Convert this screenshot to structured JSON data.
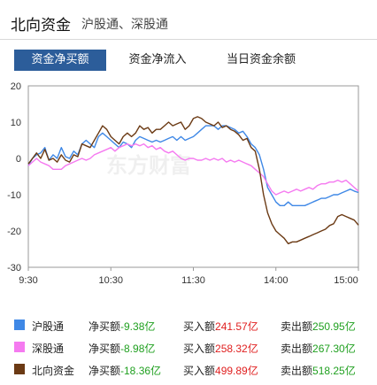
{
  "header": {
    "title": "北向资金",
    "subtitle": "沪股通、深股通"
  },
  "tabs": [
    {
      "label": "资金净买额",
      "active": true
    },
    {
      "label": "资金净流入",
      "active": false
    },
    {
      "label": "当日资金余额",
      "active": false
    }
  ],
  "watermark": "东方财富",
  "chart_data": {
    "type": "line",
    "x_axis": {
      "ticks": [
        "9:30",
        "10:30",
        "11:30",
        "14:00",
        "15:00"
      ]
    },
    "y_axis": {
      "min": -30,
      "max": 20,
      "ticks": [
        20,
        10,
        0,
        -10,
        -20,
        -30
      ]
    },
    "grid": false,
    "series": [
      {
        "name": "沪股通",
        "color": "#3f88e6",
        "points": [
          [
            0,
            -2
          ],
          [
            3,
            0
          ],
          [
            6,
            1
          ],
          [
            9,
            1.5
          ],
          [
            12,
            3
          ],
          [
            15,
            -0.5
          ],
          [
            18,
            1
          ],
          [
            21,
            0
          ],
          [
            24,
            3
          ],
          [
            27,
            0.5
          ],
          [
            30,
            0
          ],
          [
            33,
            2
          ],
          [
            36,
            1
          ],
          [
            39,
            4
          ],
          [
            42,
            5
          ],
          [
            45,
            4
          ],
          [
            48,
            3
          ],
          [
            51,
            6
          ],
          [
            54,
            7
          ],
          [
            57,
            6
          ],
          [
            60,
            5
          ],
          [
            63,
            4
          ],
          [
            66,
            3
          ],
          [
            69,
            4.5
          ],
          [
            72,
            4
          ],
          [
            75,
            3
          ],
          [
            78,
            5
          ],
          [
            81,
            6
          ],
          [
            84,
            5.5
          ],
          [
            87,
            5
          ],
          [
            90,
            4.5
          ],
          [
            93,
            5
          ],
          [
            96,
            4.5
          ],
          [
            99,
            5
          ],
          [
            102,
            5.5
          ],
          [
            105,
            6
          ],
          [
            108,
            5
          ],
          [
            111,
            6
          ],
          [
            114,
            5
          ],
          [
            117,
            5.5
          ],
          [
            120,
            6
          ],
          [
            123,
            7
          ],
          [
            126,
            8
          ],
          [
            129,
            9
          ],
          [
            132,
            9
          ],
          [
            135,
            9
          ],
          [
            138,
            8
          ],
          [
            141,
            9
          ],
          [
            144,
            9
          ],
          [
            147,
            8.5
          ],
          [
            150,
            8
          ],
          [
            153,
            7
          ],
          [
            156,
            7.5
          ],
          [
            159,
            6
          ],
          [
            162,
            4
          ],
          [
            165,
            3
          ],
          [
            168,
            1
          ],
          [
            171,
            -3
          ],
          [
            174,
            -8
          ],
          [
            177,
            -10
          ],
          [
            180,
            -12
          ],
          [
            183,
            -13
          ],
          [
            186,
            -13
          ],
          [
            189,
            -12
          ],
          [
            192,
            -13
          ],
          [
            195,
            -13
          ],
          [
            198,
            -13
          ],
          [
            201,
            -13
          ],
          [
            204,
            -12.5
          ],
          [
            207,
            -12
          ],
          [
            210,
            -11.5
          ],
          [
            213,
            -11
          ],
          [
            216,
            -11
          ],
          [
            219,
            -10.5
          ],
          [
            222,
            -10
          ],
          [
            225,
            -10
          ],
          [
            228,
            -9.5
          ],
          [
            231,
            -9
          ],
          [
            234,
            -8.5
          ],
          [
            237,
            -9
          ],
          [
            240,
            -9.38
          ]
        ]
      },
      {
        "name": "深股通",
        "color": "#f57af0",
        "points": [
          [
            0,
            -2
          ],
          [
            3,
            -1
          ],
          [
            6,
            0
          ],
          [
            9,
            -1
          ],
          [
            12,
            -1.5
          ],
          [
            15,
            -2
          ],
          [
            18,
            -3
          ],
          [
            21,
            -3
          ],
          [
            24,
            -3
          ],
          [
            27,
            -2
          ],
          [
            30,
            -1.5
          ],
          [
            33,
            -1
          ],
          [
            36,
            -0.5
          ],
          [
            39,
            0
          ],
          [
            42,
            -0.5
          ],
          [
            45,
            0
          ],
          [
            48,
            1
          ],
          [
            51,
            1.5
          ],
          [
            54,
            2
          ],
          [
            57,
            2.5
          ],
          [
            60,
            3
          ],
          [
            63,
            2
          ],
          [
            66,
            3
          ],
          [
            69,
            3.5
          ],
          [
            72,
            4
          ],
          [
            75,
            3.5
          ],
          [
            78,
            4
          ],
          [
            81,
            3.5
          ],
          [
            84,
            4
          ],
          [
            87,
            3
          ],
          [
            90,
            3.5
          ],
          [
            93,
            2.5
          ],
          [
            96,
            3
          ],
          [
            99,
            2
          ],
          [
            102,
            1.5
          ],
          [
            105,
            2
          ],
          [
            108,
            1
          ],
          [
            111,
            0
          ],
          [
            114,
            -0.5
          ],
          [
            117,
            0
          ],
          [
            120,
            0
          ],
          [
            123,
            -0.5
          ],
          [
            126,
            -0.5
          ],
          [
            129,
            0
          ],
          [
            132,
            -0.5
          ],
          [
            135,
            0
          ],
          [
            138,
            -0.5
          ],
          [
            141,
            0
          ],
          [
            144,
            -1
          ],
          [
            147,
            -0.5
          ],
          [
            150,
            -1
          ],
          [
            153,
            -0.5
          ],
          [
            156,
            -1
          ],
          [
            159,
            -1.5
          ],
          [
            162,
            -2
          ],
          [
            165,
            -3
          ],
          [
            168,
            -4
          ],
          [
            171,
            -5
          ],
          [
            174,
            -7
          ],
          [
            177,
            -9
          ],
          [
            180,
            -10
          ],
          [
            183,
            -9.5
          ],
          [
            186,
            -9
          ],
          [
            189,
            -9.5
          ],
          [
            192,
            -9
          ],
          [
            195,
            -8.5
          ],
          [
            198,
            -9
          ],
          [
            201,
            -8.5
          ],
          [
            204,
            -8
          ],
          [
            207,
            -8.5
          ],
          [
            210,
            -7.5
          ],
          [
            213,
            -7
          ],
          [
            216,
            -7
          ],
          [
            219,
            -6.5
          ],
          [
            222,
            -6.5
          ],
          [
            225,
            -6
          ],
          [
            228,
            -6.5
          ],
          [
            231,
            -6
          ],
          [
            234,
            -7
          ],
          [
            237,
            -8
          ],
          [
            240,
            -8.98
          ]
        ]
      },
      {
        "name": "北向资金",
        "color": "#6b3a14",
        "points": [
          [
            0,
            -1.5
          ],
          [
            3,
            0
          ],
          [
            6,
            1.5
          ],
          [
            9,
            0
          ],
          [
            12,
            2.5
          ],
          [
            15,
            -0.5
          ],
          [
            18,
            0
          ],
          [
            21,
            -1
          ],
          [
            24,
            1
          ],
          [
            27,
            -0.5
          ],
          [
            30,
            -1
          ],
          [
            33,
            1
          ],
          [
            36,
            0.5
          ],
          [
            39,
            4
          ],
          [
            42,
            3.5
          ],
          [
            45,
            3
          ],
          [
            48,
            5
          ],
          [
            51,
            7
          ],
          [
            54,
            9
          ],
          [
            57,
            8
          ],
          [
            60,
            6
          ],
          [
            63,
            5
          ],
          [
            66,
            4
          ],
          [
            69,
            6
          ],
          [
            72,
            7
          ],
          [
            75,
            6
          ],
          [
            78,
            7
          ],
          [
            81,
            9
          ],
          [
            84,
            8
          ],
          [
            87,
            8.5
          ],
          [
            90,
            7
          ],
          [
            93,
            8
          ],
          [
            96,
            8
          ],
          [
            99,
            9
          ],
          [
            102,
            10
          ],
          [
            105,
            9
          ],
          [
            108,
            9.5
          ],
          [
            111,
            10
          ],
          [
            114,
            8
          ],
          [
            117,
            9
          ],
          [
            120,
            11
          ],
          [
            123,
            11.5
          ],
          [
            126,
            11
          ],
          [
            129,
            10
          ],
          [
            132,
            9.5
          ],
          [
            135,
            9
          ],
          [
            138,
            10
          ],
          [
            141,
            8.5
          ],
          [
            144,
            9
          ],
          [
            147,
            8
          ],
          [
            150,
            7.5
          ],
          [
            153,
            6.5
          ],
          [
            156,
            5
          ],
          [
            159,
            5.5
          ],
          [
            162,
            3
          ],
          [
            165,
            2
          ],
          [
            168,
            -3
          ],
          [
            171,
            -10
          ],
          [
            174,
            -15
          ],
          [
            177,
            -18
          ],
          [
            180,
            -20
          ],
          [
            183,
            -21
          ],
          [
            186,
            -22
          ],
          [
            189,
            -23.5
          ],
          [
            192,
            -23
          ],
          [
            195,
            -23
          ],
          [
            198,
            -22.5
          ],
          [
            201,
            -22
          ],
          [
            204,
            -21.5
          ],
          [
            207,
            -21
          ],
          [
            210,
            -20.5
          ],
          [
            213,
            -20
          ],
          [
            216,
            -19.5
          ],
          [
            219,
            -18.5
          ],
          [
            222,
            -18
          ],
          [
            225,
            -16
          ],
          [
            228,
            -15.5
          ],
          [
            231,
            -16
          ],
          [
            234,
            -16.5
          ],
          [
            237,
            -17
          ],
          [
            240,
            -18.36
          ]
        ]
      }
    ]
  },
  "legend": [
    {
      "name": "沪股通",
      "color": "#3f88e6",
      "net_label": "净买额",
      "net": "-9.38亿",
      "buy_label": "买入额",
      "buy": "241.57亿",
      "sell_label": "卖出额",
      "sell": "250.95亿"
    },
    {
      "name": "深股通",
      "color": "#f57af0",
      "net_label": "净买额",
      "net": "-8.98亿",
      "buy_label": "买入额",
      "buy": "258.32亿",
      "sell_label": "卖出额",
      "sell": "267.30亿"
    },
    {
      "name": "北向资金",
      "color": "#6b3a14",
      "net_label": "净买额",
      "net": "-18.36亿",
      "buy_label": "买入额",
      "buy": "499.89亿",
      "sell_label": "卖出额",
      "sell": "518.25亿"
    }
  ]
}
